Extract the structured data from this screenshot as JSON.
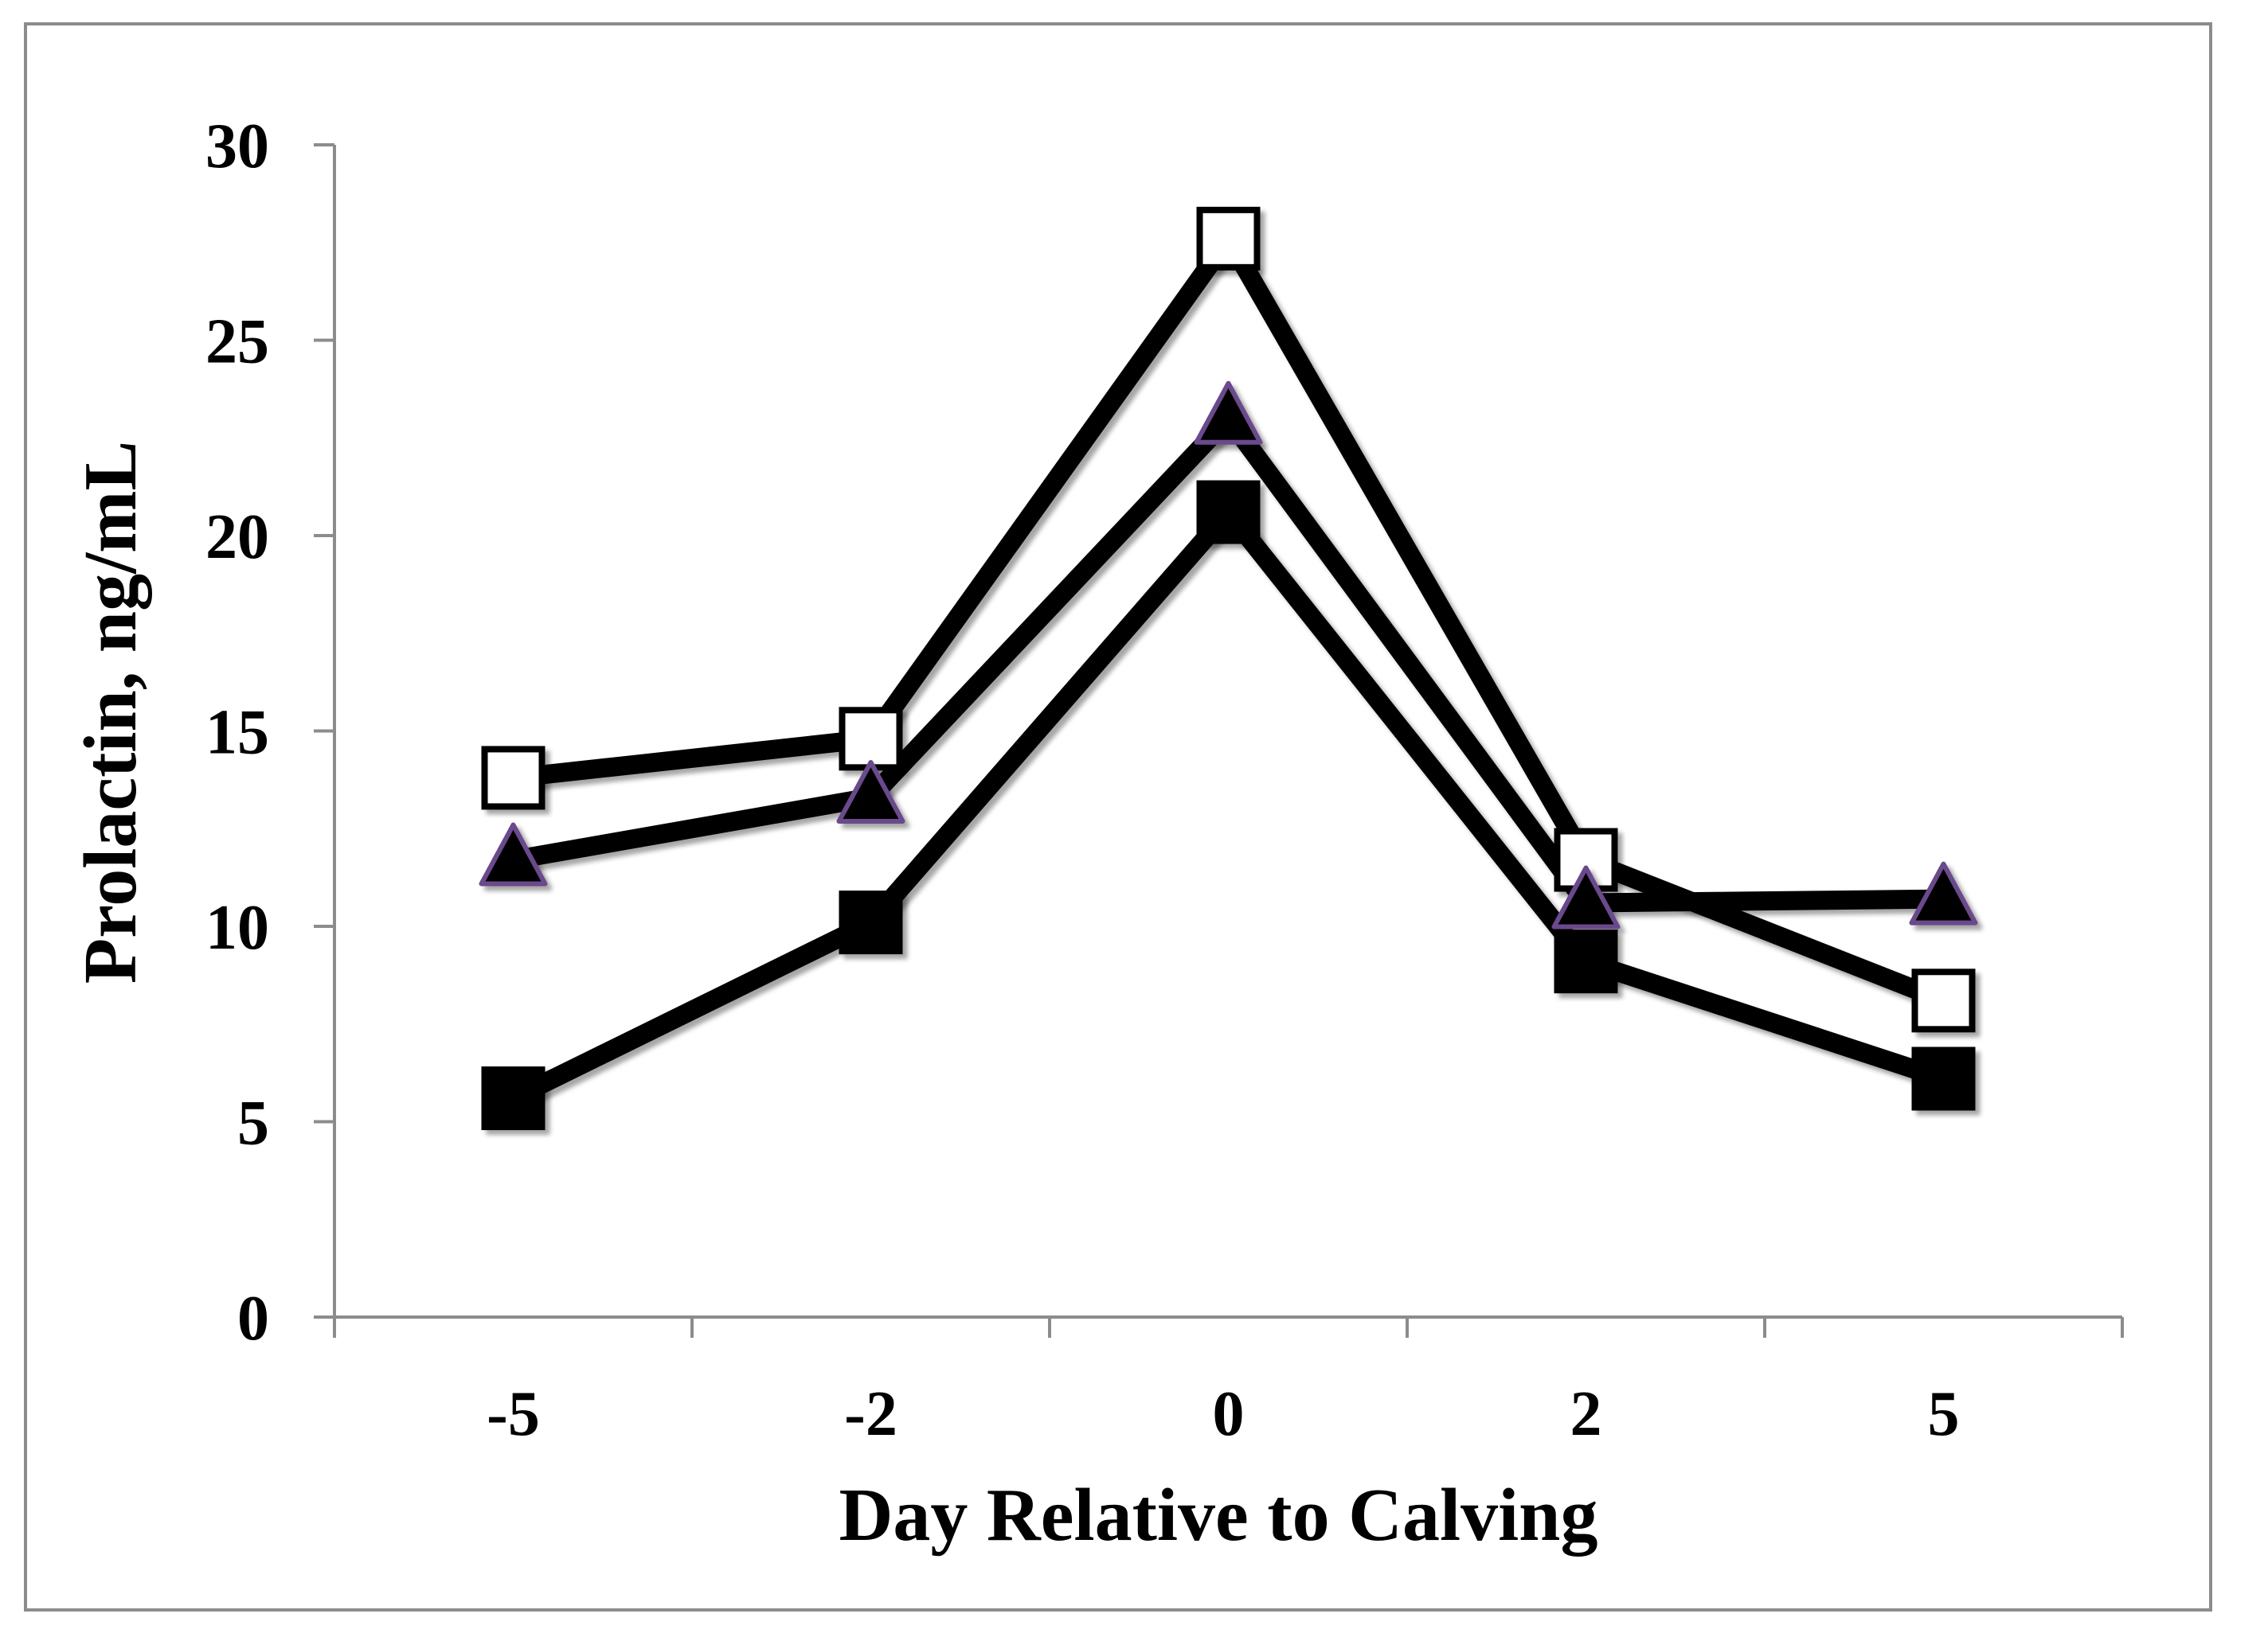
{
  "chart_data": {
    "type": "line",
    "title": "",
    "xlabel": "Day Relative to Calving",
    "ylabel": "Prolactin, ng/mL",
    "categories": [
      "-5",
      "-2",
      "0",
      "2",
      "5"
    ],
    "ylim": [
      0,
      30
    ],
    "yticks": [
      0,
      5,
      10,
      15,
      20,
      25,
      30
    ],
    "grid": false,
    "legend": "none",
    "series": [
      {
        "name": "open-square",
        "marker": "square-open",
        "values": [
          13.8,
          14.8,
          27.6,
          11.7,
          8.1
        ]
      },
      {
        "name": "triangle",
        "marker": "triangle",
        "values": [
          11.7,
          13.3,
          23.0,
          10.6,
          10.7
        ]
      },
      {
        "name": "filled-square",
        "marker": "square-filled",
        "values": [
          5.6,
          10.1,
          20.6,
          9.1,
          6.1
        ]
      }
    ]
  },
  "colors": {
    "line": "#000000",
    "axis": "#8c8c8c",
    "triangle_edge": "#6a4a8c",
    "open_fill": "#ffffff",
    "filled": "#000000"
  }
}
